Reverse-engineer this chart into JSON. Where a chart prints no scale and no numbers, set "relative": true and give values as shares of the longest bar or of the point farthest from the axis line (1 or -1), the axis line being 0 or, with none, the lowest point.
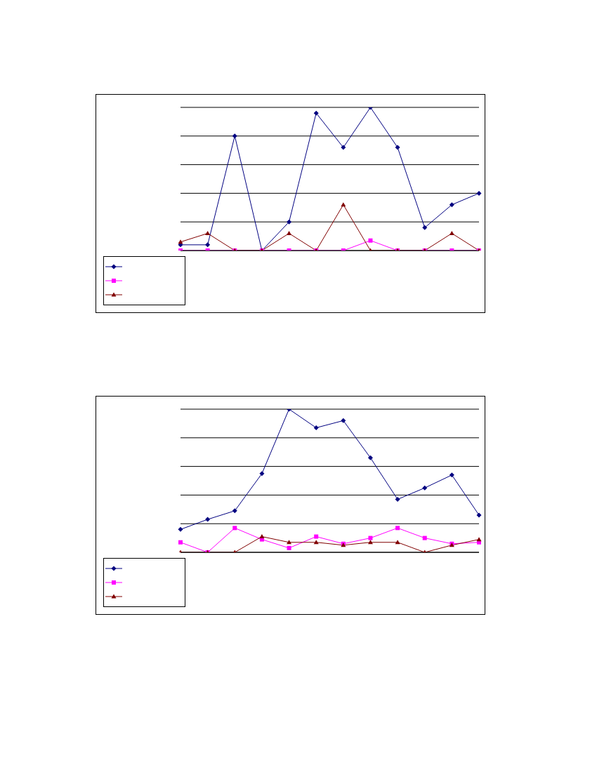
{
  "chart_data": [
    {
      "type": "line",
      "relative": true,
      "categories": [
        null,
        null,
        null,
        null,
        null,
        null,
        null,
        null,
        null,
        null,
        null,
        null
      ],
      "grid": "y",
      "series": [
        {
          "color": "#000080",
          "marker": "diamond",
          "values": [
            0.04,
            0.04,
            0.8,
            0,
            0.2,
            0.96,
            0.72,
            1,
            0.72,
            0.16,
            0.32,
            0.4
          ]
        },
        {
          "color": "#ff00ff",
          "marker": "square",
          "values": [
            0,
            0,
            0,
            0,
            0,
            0,
            0,
            0.07,
            0,
            0,
            0,
            0
          ]
        },
        {
          "color": "#800000",
          "marker": "triangle",
          "values": [
            0.06,
            0.12,
            0,
            0,
            0.12,
            0,
            0.32,
            0,
            0,
            0,
            0.12,
            0
          ]
        }
      ]
    },
    {
      "type": "line",
      "relative": true,
      "categories": [
        null,
        null,
        null,
        null,
        null,
        null,
        null,
        null,
        null,
        null,
        null,
        null
      ],
      "grid": "y",
      "series": [
        {
          "color": "#000080",
          "marker": "diamond",
          "values": [
            0.16,
            0.23,
            0.29,
            0.55,
            1,
            0.87,
            0.92,
            0.66,
            0.37,
            0.45,
            0.54,
            0.26
          ]
        },
        {
          "color": "#ff00ff",
          "marker": "square",
          "values": [
            0.07,
            0,
            0.17,
            0.09,
            0.03,
            0.11,
            0.06,
            0.1,
            0.17,
            0.1,
            0.06,
            0.07
          ]
        },
        {
          "color": "#800000",
          "marker": "triangle",
          "values": [
            0,
            0,
            0,
            0.11,
            0.07,
            0.07,
            0.05,
            0.07,
            0.07,
            0,
            0.05,
            0.09
          ]
        }
      ]
    }
  ]
}
